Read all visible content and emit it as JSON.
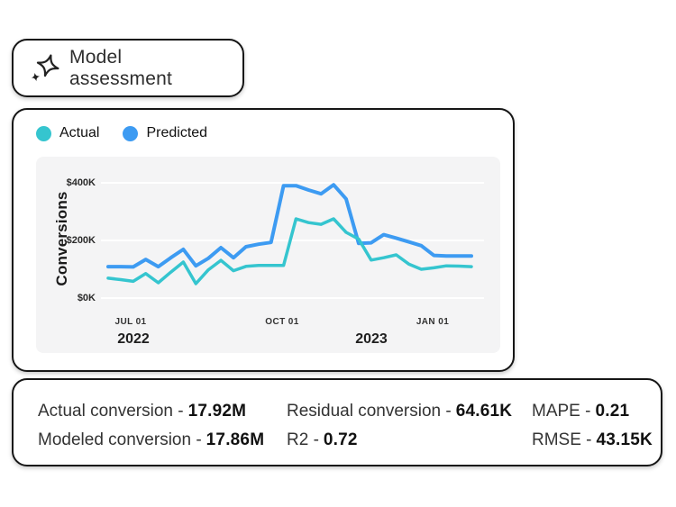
{
  "header": {
    "title": "Model assessment"
  },
  "chart_data": {
    "type": "line",
    "title": "Model assessment forecast chart",
    "ylabel": "Conversions",
    "xlabel": "",
    "ylim": [
      0,
      490
    ],
    "y_unit": "$K",
    "x_unit": "weekly points, mid-Jun 2022 to early-Feb 2023",
    "grid": true,
    "legend_position": "top-left",
    "y_ticks": [
      {
        "label": "$0K",
        "value": 0
      },
      {
        "label": "$200K",
        "value": 200
      },
      {
        "label": "$400K",
        "value": 400
      }
    ],
    "x_ticks": [
      {
        "label": "JUL 01",
        "index": 1.8
      },
      {
        "label": "OCT 01",
        "index": 13.9
      },
      {
        "label": "JAN 01",
        "index": 25.9
      }
    ],
    "year_labels": [
      {
        "label": "2022",
        "index": 2.0
      },
      {
        "label": "2023",
        "index": 21.0
      }
    ],
    "series": [
      {
        "name": "Predicted",
        "color": "#3D9BF2",
        "values": [
          109,
          109,
          108,
          134,
          109,
          140,
          169,
          112,
          138,
          175,
          140,
          178,
          187,
          193,
          390,
          390,
          375,
          362,
          393,
          344,
          190,
          192,
          220,
          208,
          195,
          182,
          148,
          146,
          146,
          146
        ]
      },
      {
        "name": "Actual",
        "color": "#35C5CF",
        "values": [
          69,
          64,
          58,
          85,
          53,
          90,
          125,
          50,
          98,
          131,
          95,
          110,
          113,
          113,
          113,
          275,
          262,
          256,
          275,
          228,
          205,
          132,
          140,
          150,
          118,
          100,
          105,
          112,
          111,
          109
        ]
      }
    ]
  },
  "metrics": {
    "items": [
      {
        "label": "Actual conversion -",
        "value": "17.92M"
      },
      {
        "label": "Residual conversion -",
        "value": "64.61K"
      },
      {
        "label": "MAPE -",
        "value": "0.21"
      },
      {
        "label": "Modeled conversion -",
        "value": "17.86M"
      },
      {
        "label": "R2 -",
        "value": "0.72"
      },
      {
        "label": "RMSE -",
        "value": "43.15K"
      }
    ]
  }
}
